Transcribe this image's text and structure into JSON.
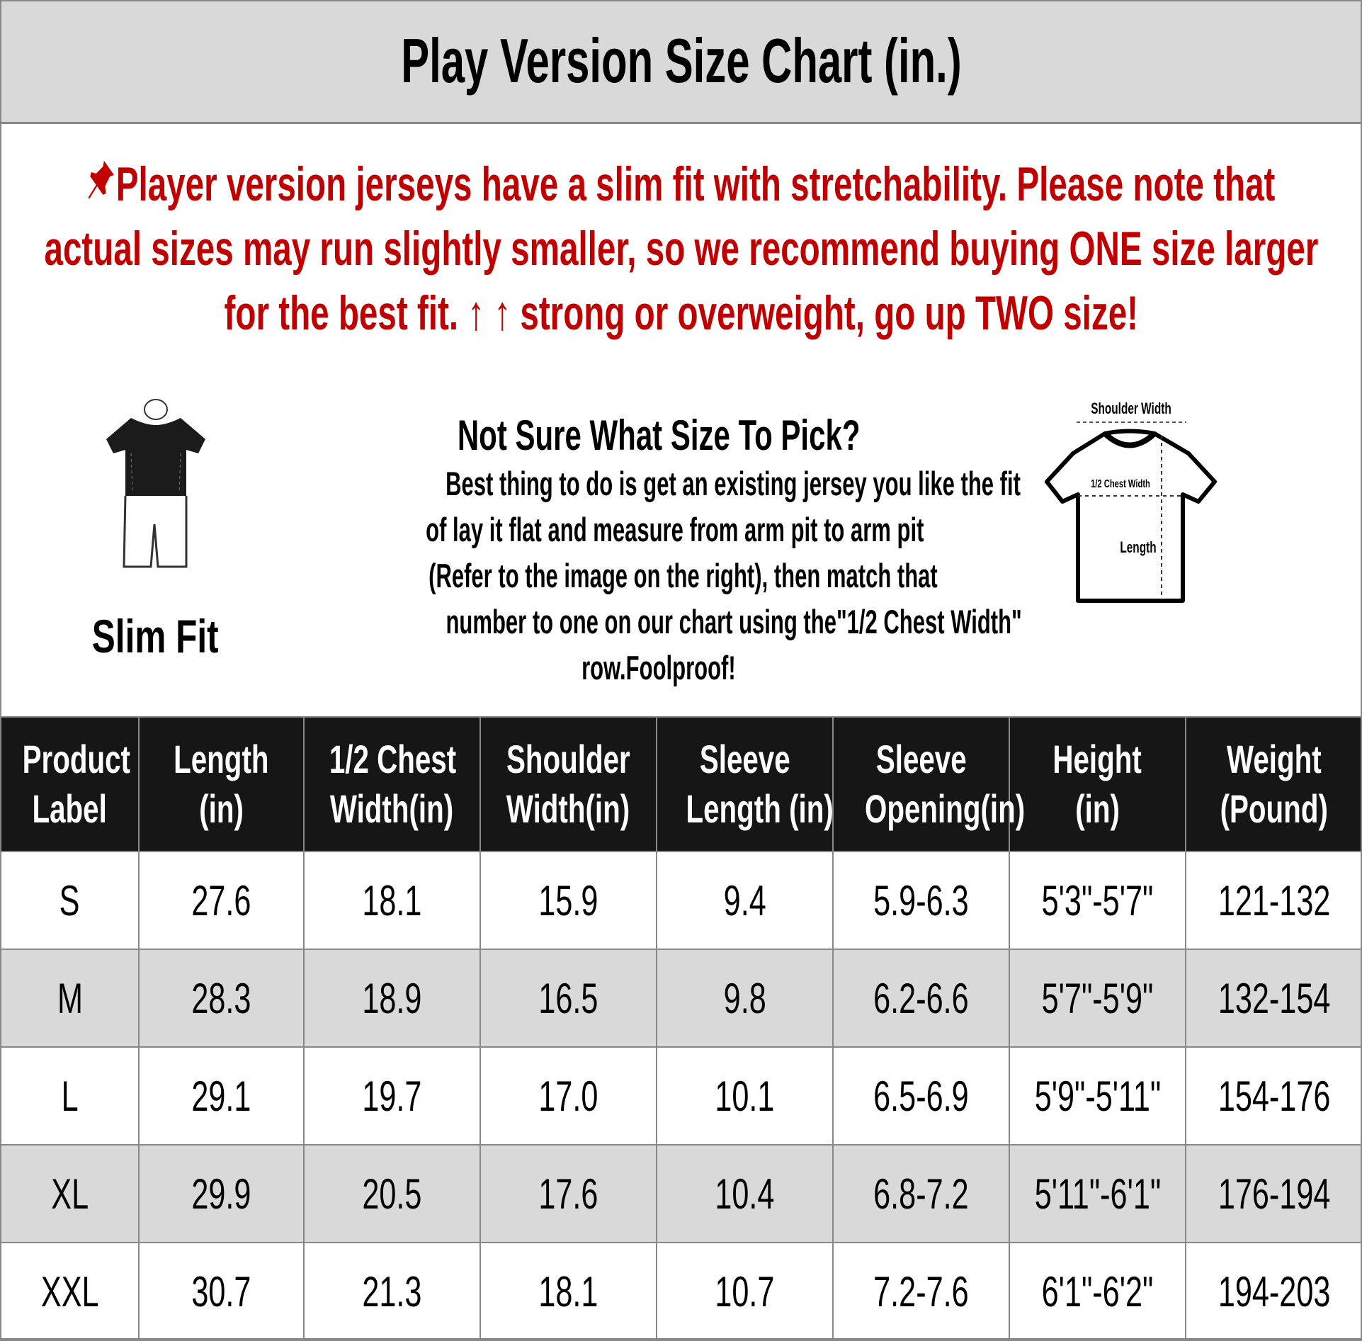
{
  "title": "Play Version Size Chart (in.)",
  "notice": {
    "icon": "pushpin-icon",
    "color": "#c00000",
    "lines": [
      "Player version jerseys have a slim fit with stretchability. Please note that",
      "actual sizes may run slightly smaller, so we recommend buying ONE size larger",
      "for the best fit. ↑ ↑ strong or overweight, go up TWO size!"
    ]
  },
  "fit_label": "Slim Fit",
  "help": {
    "heading": "Not Sure What Size To Pick?",
    "lines": [
      "Best thing to do is get an existing jersey you like the fit",
      "of lay it flat and measure from arm pit to arm pit",
      "(Refer to the image on the right), then match that",
      "number to one on our chart using the\"1/2 Chest Width\"",
      "row.Foolproof!"
    ]
  },
  "diagram": {
    "shoulder": "Shoulder Width",
    "chest": "1/2 Chest Width",
    "length": "Length"
  },
  "table": {
    "headers": [
      [
        "Product",
        "Label"
      ],
      [
        "Length",
        "(in)"
      ],
      [
        "1/2 Chest",
        "Width(in)"
      ],
      [
        "Shoulder",
        "Width(in)"
      ],
      [
        "Sleeve",
        "Length (in)"
      ],
      [
        "Sleeve",
        "Opening(in)"
      ],
      [
        "Height",
        "(in)"
      ],
      [
        "Weight",
        "(Pound)"
      ]
    ],
    "rows": [
      [
        "S",
        "27.6",
        "18.1",
        "15.9",
        "9.4",
        "5.9-6.3",
        "5'3\"-5'7\"",
        "121-132"
      ],
      [
        "M",
        "28.3",
        "18.9",
        "16.5",
        "9.8",
        "6.2-6.6",
        "5'7\"-5'9\"",
        "132-154"
      ],
      [
        "L",
        "29.1",
        "19.7",
        "17.0",
        "10.1",
        "6.5-6.9",
        "5'9\"-5'11\"",
        "154-176"
      ],
      [
        "XL",
        "29.9",
        "20.5",
        "17.6",
        "10.4",
        "6.8-7.2",
        "5'11\"-6'1\"",
        "176-194"
      ],
      [
        "XXL",
        "30.7",
        "21.3",
        "18.1",
        "10.7",
        "7.2-7.6",
        "6'1\"-6'2\"",
        "194-203"
      ]
    ]
  }
}
